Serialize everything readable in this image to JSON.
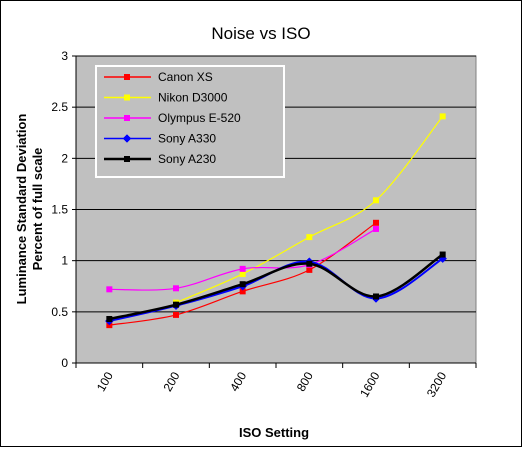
{
  "chart_data": {
    "type": "line",
    "title": "Noise vs ISO",
    "xlabel": "ISO Setting",
    "ylabel_line1": "Luminance Standard Deviation",
    "ylabel_line2": "Percent of full scale",
    "categories": [
      "100",
      "200",
      "400",
      "800",
      "1600",
      "3200"
    ],
    "y_ticks": [
      "0",
      "0.5",
      "1",
      "1.5",
      "2",
      "2.5",
      "3"
    ],
    "ylim": [
      0,
      3
    ],
    "grid": "horizontal",
    "legend_position": "top-left",
    "plot_background": "#c0c0c0",
    "series": [
      {
        "name": "Canon XS",
        "color": "#ff0000",
        "marker": "square",
        "values": [
          0.37,
          0.47,
          0.7,
          0.91,
          1.37,
          null
        ]
      },
      {
        "name": "Nikon D3000",
        "color": "#ffff00",
        "marker": "square",
        "values": [
          null,
          0.59,
          0.87,
          1.23,
          1.59,
          2.41
        ]
      },
      {
        "name": "Olympus E-520",
        "color": "#ff00ff",
        "marker": "square",
        "values": [
          0.72,
          0.73,
          0.92,
          0.96,
          1.31,
          null
        ]
      },
      {
        "name": "Sony A330",
        "color": "#0000ff",
        "marker": "diamond",
        "values": [
          0.41,
          0.56,
          0.75,
          0.99,
          0.63,
          1.02
        ]
      },
      {
        "name": "Sony A230",
        "color": "#000000",
        "marker": "square",
        "values": [
          0.43,
          0.57,
          0.77,
          0.97,
          0.65,
          1.06
        ]
      }
    ]
  }
}
